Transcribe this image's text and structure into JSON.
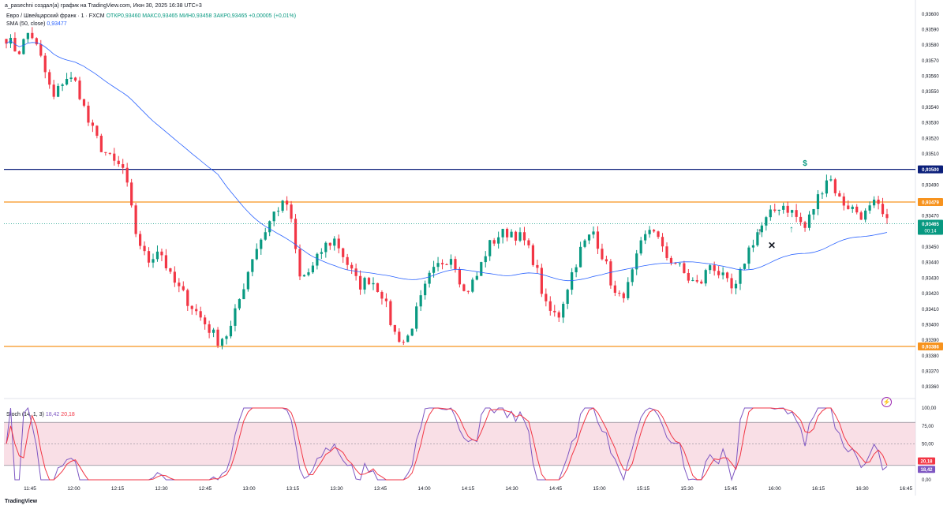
{
  "header": {
    "author_line": "a_pasechni создал(а) график на TradingView.com, Июн 30, 2025 16:38 UTC+3",
    "symbol": "Евро / Швейцарский франк · 1 · FXCM",
    "ohlc": "ОТКР0,93460  МАКС0,93465  МИН0,93458  ЗАКР0,93465  +0,00005 (+0,01%)",
    "sma_label": "SMA (50, close)",
    "sma_value": "0,93477",
    "stoch_label": "Stoch (14, 1, 3)",
    "stoch_k": "18,42",
    "stoch_d": "20,18",
    "logo": "TradingView"
  },
  "colors": {
    "up": "#089981",
    "down": "#f23645",
    "sma": "#2962ff",
    "resistance_blue": "#0b1f7a",
    "orange": "#f7931e",
    "stoch_k": "#7e57c2",
    "stoch_d": "#f23645",
    "stoch_band": "#f8d7e0"
  },
  "chart_data": [
    {
      "type": "candlestick",
      "symbol": "EUR/CHF",
      "timeframe": "1",
      "y_axis_ticks": [
        "0,93600",
        "0,93590",
        "0,93580",
        "0,93570",
        "0,93560",
        "0,93550",
        "0,93540",
        "0,93530",
        "0,93520",
        "0,93510",
        "0,93490",
        "0,93470",
        "0,93450",
        "0,93440",
        "0,93430",
        "0,93420",
        "0,93410",
        "0,93400",
        "0,93390",
        "0,93380",
        "0,93370",
        "0,93360"
      ],
      "ylim": [
        0.93355,
        0.93605
      ],
      "x_axis_ticks": [
        "11:45",
        "12:00",
        "12:15",
        "12:30",
        "12:45",
        "13:00",
        "13:15",
        "13:30",
        "13:45",
        "14:00",
        "14:15",
        "14:30",
        "14:45",
        "15:00",
        "15:15",
        "15:30",
        "15:45",
        "16:00",
        "16:15",
        "16:30",
        "16:45"
      ],
      "horizontal_levels": [
        {
          "value": 0.935,
          "label": "0,93500",
          "color": "#0b1f7a"
        },
        {
          "value": 0.93479,
          "label": "0,93479",
          "color": "#f7931e"
        },
        {
          "value": 0.93386,
          "label": "0,93386",
          "color": "#f7931e"
        }
      ],
      "last_price": {
        "value": 0.93465,
        "label": "0,93465",
        "countdown": "00:14"
      },
      "price_path": [
        0.93585,
        0.93575,
        0.9359,
        0.9357,
        0.93545,
        0.9356,
        0.93555,
        0.9353,
        0.93515,
        0.93505,
        0.935,
        0.9346,
        0.9344,
        0.9345,
        0.9343,
        0.9342,
        0.9341,
        0.934,
        0.9339,
        0.93395,
        0.9342,
        0.93445,
        0.9346,
        0.93475,
        0.93478,
        0.9343,
        0.93435,
        0.9345,
        0.93455,
        0.9344,
        0.93425,
        0.9343,
        0.9342,
        0.93395,
        0.93388,
        0.9341,
        0.9343,
        0.9344,
        0.93445,
        0.9342,
        0.9343,
        0.9345,
        0.93458,
        0.9346,
        0.93455,
        0.9344,
        0.9341,
        0.93405,
        0.9343,
        0.9345,
        0.9346,
        0.9344,
        0.93415,
        0.93425,
        0.9345,
        0.93465,
        0.93445,
        0.9344,
        0.9343,
        0.93425,
        0.9344,
        0.9343,
        0.9342,
        0.93445,
        0.9346,
        0.9347,
        0.93478,
        0.93472,
        0.93462,
        0.9348,
        0.93497,
        0.9348,
        0.93475,
        0.9347,
        0.93478,
        0.93465
      ],
      "sma_label": "SMA (50, close)",
      "annotations": [
        "$",
        "↑",
        "✕",
        "↑"
      ]
    },
    {
      "type": "line",
      "title": "Stoch (14, 1, 3)",
      "y_axis_ticks": [
        "100,00",
        "75,00",
        "50,00",
        "25,00",
        "0,00"
      ],
      "ylim": [
        0,
        100
      ],
      "bands": [
        80,
        50,
        20
      ],
      "last_k": {
        "value": 18.42,
        "label": "18,42"
      },
      "last_d": {
        "value": 20.18,
        "label": "20,18"
      }
    }
  ]
}
